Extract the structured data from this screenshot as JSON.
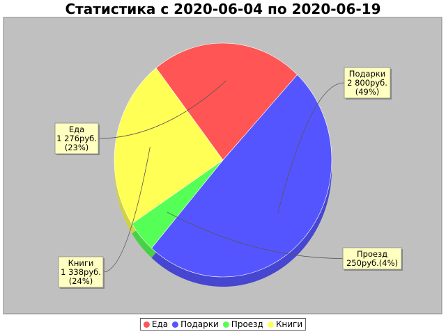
{
  "chart_data": {
    "type": "pie",
    "title": "Статистика с 2020-06-04 по 2020-06-19",
    "series": [
      {
        "name": "Еда",
        "value": 1276,
        "value_label": "1 276руб.",
        "percent_label": "(23%)",
        "color": "#ff5555"
      },
      {
        "name": "Подарки",
        "value": 2800,
        "value_label": "2 800руб.",
        "percent_label": "(49%)",
        "color": "#5555ff"
      },
      {
        "name": "Проезд",
        "value": 250,
        "value_label": "250руб.",
        "percent_label": "(4%)",
        "color": "#55ff55"
      },
      {
        "name": "Книги",
        "value": 1338,
        "value_label": "1 338руб.",
        "percent_label": "(24%)",
        "color": "#ffff55"
      }
    ],
    "legend_position": "bottom",
    "plot_background": "#c0c0c0",
    "label_background": "#ffffc0"
  }
}
